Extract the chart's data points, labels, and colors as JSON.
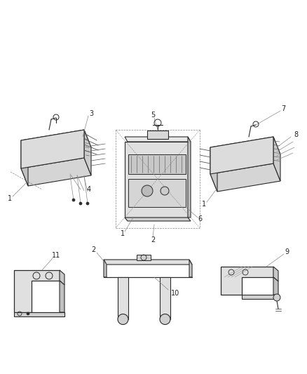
{
  "background_color": "#ffffff",
  "figsize": [
    4.38,
    5.33
  ],
  "dpi": 100,
  "lc": "#2a2a2a",
  "alc": "#888888",
  "fc_light": "#e8e8e8",
  "fc_mid": "#d0d0d0",
  "fc_dark": "#b8b8b8"
}
